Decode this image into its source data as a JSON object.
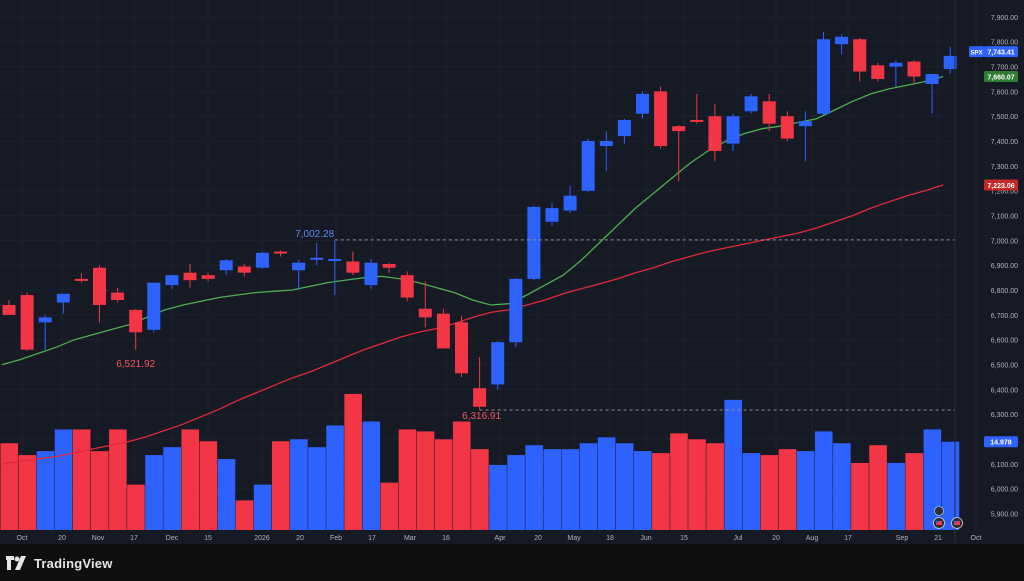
{
  "app": {
    "brand": "TradingView"
  },
  "colors": {
    "up": "#2e62ff",
    "down": "#f23645",
    "ma_fast": "#4caf50",
    "ma_slow": "#e02a3a",
    "grid": "#1e2230",
    "axis_text": "#b2b5be",
    "background": "#161a25"
  },
  "chart_data": {
    "type": "candlestick",
    "symbol": "SPX",
    "x_ticks": [
      "Oct",
      "20",
      "Nov",
      "17",
      "Dec",
      "15",
      "2026",
      "20",
      "Feb",
      "17",
      "Mar",
      "16",
      "Apr",
      "20",
      "May",
      "18",
      "Jun",
      "15",
      "Jul",
      "20",
      "Aug",
      "17",
      "Sep",
      "21",
      "Oct"
    ],
    "y_ticks": [
      "7,900.00",
      "7,800.00",
      "7,700.00",
      "7,600.00",
      "7,500.00",
      "7,400.00",
      "7,300.00",
      "7,200.00",
      "7,100.00",
      "7,000.00",
      "6,900.00",
      "6,800.00",
      "6,700.00",
      "6,600.00",
      "6,500.00",
      "6,400.00",
      "6,300.00",
      "6,200.00",
      "6,100.00",
      "6,000.00",
      "5,900.00"
    ],
    "ylim": [
      5850,
      7960
    ],
    "price_labels": {
      "last": "7,743.41",
      "ma_fast": "7,660.07",
      "ma_slow": "7,223.06",
      "volume": "14.978"
    },
    "annotations": {
      "high": {
        "text": "7,002.28",
        "value": 7002.28
      },
      "low_mid": {
        "text": "6,521.92",
        "value": 6521.92
      },
      "low": {
        "text": "6,316.91",
        "value": 6316.91
      }
    },
    "candles": [
      {
        "o": 6740,
        "h": 6760,
        "l": 6700,
        "c": 6700
      },
      {
        "o": 6780,
        "h": 6790,
        "l": 6555,
        "c": 6560
      },
      {
        "o": 6670,
        "h": 6700,
        "l": 6560,
        "c": 6690
      },
      {
        "o": 6750,
        "h": 6785,
        "l": 6705,
        "c": 6785
      },
      {
        "o": 6845,
        "h": 6870,
        "l": 6830,
        "c": 6840
      },
      {
        "o": 6890,
        "h": 6900,
        "l": 6670,
        "c": 6740
      },
      {
        "o": 6790,
        "h": 6810,
        "l": 6750,
        "c": 6760
      },
      {
        "o": 6720,
        "h": 6725,
        "l": 6560,
        "c": 6630
      },
      {
        "o": 6640,
        "h": 6830,
        "l": 6630,
        "c": 6830
      },
      {
        "o": 6820,
        "h": 6860,
        "l": 6805,
        "c": 6860
      },
      {
        "o": 6870,
        "h": 6905,
        "l": 6810,
        "c": 6840
      },
      {
        "o": 6860,
        "h": 6870,
        "l": 6835,
        "c": 6845
      },
      {
        "o": 6880,
        "h": 6925,
        "l": 6860,
        "c": 6920
      },
      {
        "o": 6895,
        "h": 6905,
        "l": 6855,
        "c": 6870
      },
      {
        "o": 6890,
        "h": 6955,
        "l": 6885,
        "c": 6950
      },
      {
        "o": 6955,
        "h": 6960,
        "l": 6935,
        "c": 6950
      },
      {
        "o": 6880,
        "h": 6920,
        "l": 6800,
        "c": 6910
      },
      {
        "o": 6925,
        "h": 6990,
        "l": 6900,
        "c": 6930
      },
      {
        "o": 6920,
        "h": 7000,
        "l": 6780,
        "c": 6925
      },
      {
        "o": 6915,
        "h": 6955,
        "l": 6860,
        "c": 6870
      },
      {
        "o": 6820,
        "h": 6925,
        "l": 6805,
        "c": 6910
      },
      {
        "o": 6905,
        "h": 6910,
        "l": 6870,
        "c": 6890
      },
      {
        "o": 6860,
        "h": 6875,
        "l": 6755,
        "c": 6770
      },
      {
        "o": 6725,
        "h": 6835,
        "l": 6650,
        "c": 6690
      },
      {
        "o": 6705,
        "h": 6725,
        "l": 6570,
        "c": 6565
      },
      {
        "o": 6670,
        "h": 6695,
        "l": 6450,
        "c": 6465
      },
      {
        "o": 6405,
        "h": 6530,
        "l": 6318,
        "c": 6330
      },
      {
        "o": 6420,
        "h": 6595,
        "l": 6400,
        "c": 6590
      },
      {
        "o": 6590,
        "h": 6850,
        "l": 6570,
        "c": 6845
      },
      {
        "o": 6845,
        "h": 7140,
        "l": 6840,
        "c": 7135
      },
      {
        "o": 7075,
        "h": 7150,
        "l": 7060,
        "c": 7130
      },
      {
        "o": 7120,
        "h": 7220,
        "l": 7110,
        "c": 7180
      },
      {
        "o": 7200,
        "h": 7410,
        "l": 7195,
        "c": 7400
      },
      {
        "o": 7380,
        "h": 7440,
        "l": 7280,
        "c": 7400
      },
      {
        "o": 7420,
        "h": 7490,
        "l": 7390,
        "c": 7485
      },
      {
        "o": 7510,
        "h": 7600,
        "l": 7490,
        "c": 7590
      },
      {
        "o": 7600,
        "h": 7620,
        "l": 7370,
        "c": 7380
      },
      {
        "o": 7460,
        "h": 7465,
        "l": 7240,
        "c": 7440
      },
      {
        "o": 7485,
        "h": 7590,
        "l": 7470,
        "c": 7480
      },
      {
        "o": 7500,
        "h": 7550,
        "l": 7320,
        "c": 7360
      },
      {
        "o": 7390,
        "h": 7510,
        "l": 7360,
        "c": 7500
      },
      {
        "o": 7520,
        "h": 7590,
        "l": 7510,
        "c": 7580
      },
      {
        "o": 7560,
        "h": 7590,
        "l": 7440,
        "c": 7470
      },
      {
        "o": 7500,
        "h": 7520,
        "l": 7400,
        "c": 7410
      },
      {
        "o": 7460,
        "h": 7520,
        "l": 7320,
        "c": 7480
      },
      {
        "o": 7510,
        "h": 7840,
        "l": 7505,
        "c": 7810
      },
      {
        "o": 7790,
        "h": 7830,
        "l": 7750,
        "c": 7820
      },
      {
        "o": 7810,
        "h": 7815,
        "l": 7640,
        "c": 7680
      },
      {
        "o": 7705,
        "h": 7715,
        "l": 7640,
        "c": 7650
      },
      {
        "o": 7700,
        "h": 7725,
        "l": 7620,
        "c": 7715
      },
      {
        "o": 7720,
        "h": 7725,
        "l": 7630,
        "c": 7660
      },
      {
        "o": 7630,
        "h": 7660,
        "l": 7510,
        "c": 7670
      },
      {
        "o": 7690,
        "h": 7780,
        "l": 7670,
        "c": 7743
      }
    ],
    "ma_fast": [
      6500,
      6520,
      6545,
      6570,
      6600,
      6620,
      6640,
      6660,
      6690,
      6720,
      6740,
      6755,
      6770,
      6780,
      6790,
      6795,
      6800,
      6815,
      6830,
      6840,
      6850,
      6855,
      6845,
      6830,
      6810,
      6790,
      6760,
      6740,
      6745,
      6780,
      6820,
      6860,
      6920,
      6990,
      7060,
      7130,
      7190,
      7250,
      7310,
      7360,
      7400,
      7430,
      7450,
      7460,
      7475,
      7490,
      7525,
      7560,
      7590,
      7610,
      7625,
      7640,
      7660
    ],
    "ma_slow": [
      6100,
      6110,
      6120,
      6130,
      6145,
      6160,
      6175,
      6190,
      6210,
      6235,
      6260,
      6290,
      6320,
      6355,
      6385,
      6415,
      6445,
      6470,
      6500,
      6530,
      6560,
      6585,
      6610,
      6630,
      6645,
      6665,
      6690,
      6710,
      6720,
      6740,
      6760,
      6785,
      6805,
      6825,
      6845,
      6870,
      6890,
      6915,
      6935,
      6955,
      6970,
      6985,
      7000,
      7015,
      7030,
      7050,
      7075,
      7100,
      7130,
      7155,
      7180,
      7200,
      7223
    ],
    "volumes": [
      14.9,
      14.3,
      14.5,
      15.6,
      15.6,
      14.5,
      15.6,
      12.8,
      14.3,
      14.7,
      15.6,
      15.0,
      14.1,
      12.0,
      12.8,
      15.0,
      15.1,
      14.7,
      15.8,
      17.4,
      16.0,
      12.9,
      15.6,
      15.5,
      15.1,
      16.0,
      14.6,
      13.8,
      14.3,
      14.8,
      14.6,
      14.6,
      14.9,
      15.2,
      14.9,
      14.5,
      14.4,
      15.4,
      15.1,
      14.9,
      17.1,
      14.4,
      14.3,
      14.6,
      14.5,
      15.5,
      14.9,
      13.9,
      14.8,
      13.9,
      14.4,
      15.6,
      14.978
    ]
  }
}
